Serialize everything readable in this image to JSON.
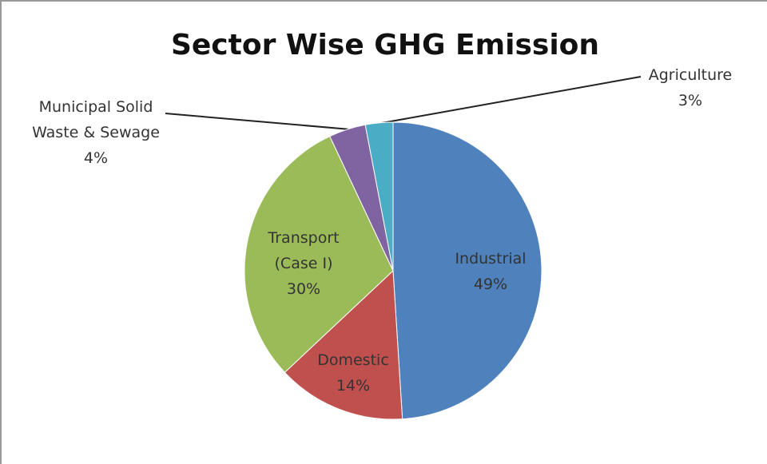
{
  "chart_data": {
    "type": "pie",
    "title": "Sector Wise GHG Emission",
    "categories": [
      "Industrial",
      "Domestic",
      "Transport (Case I)",
      "Municipal Solid Waste & Sewage",
      "Agriculture"
    ],
    "values": [
      49,
      14,
      30,
      4,
      3
    ],
    "value_labels": [
      "49%",
      "14%",
      "30%",
      "4%",
      "3%"
    ],
    "colors": [
      "#4f81bd",
      "#c0504d",
      "#9bbb59",
      "#8064a2",
      "#4bacc6"
    ]
  }
}
